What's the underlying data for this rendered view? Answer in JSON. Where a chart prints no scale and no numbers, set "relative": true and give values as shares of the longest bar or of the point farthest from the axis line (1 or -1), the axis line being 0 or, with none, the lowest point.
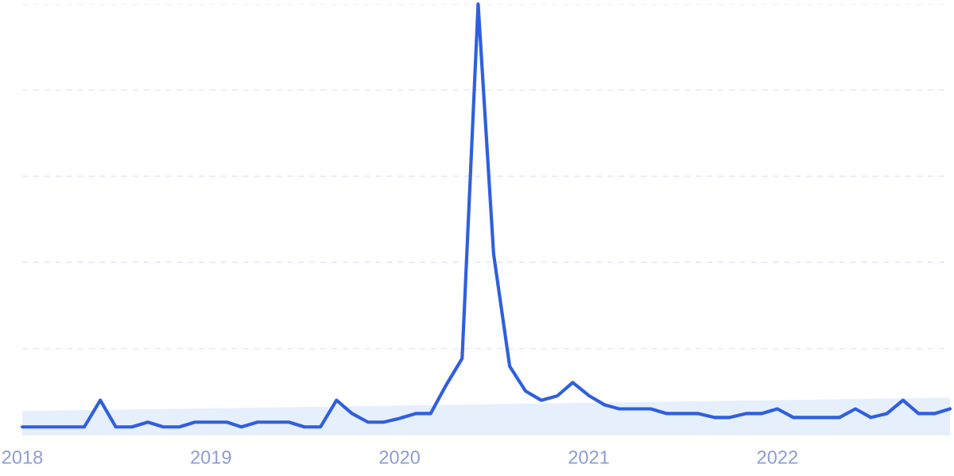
{
  "chart_data": {
    "type": "line",
    "relative": true,
    "grid": "y",
    "line_style": "solid",
    "marker": "none",
    "tick_labels": "x",
    "x": [
      "2018-01",
      "2018-02",
      "2018-03",
      "2018-04",
      "2018-05",
      "2018-06",
      "2018-07",
      "2018-08",
      "2018-09",
      "2018-10",
      "2018-11",
      "2018-12",
      "2019-01",
      "2019-02",
      "2019-03",
      "2019-04",
      "2019-05",
      "2019-06",
      "2019-07",
      "2019-08",
      "2019-09",
      "2019-10",
      "2019-11",
      "2019-12",
      "2020-01",
      "2020-02",
      "2020-03",
      "2020-04",
      "2020-05",
      "2020-06",
      "2020-07",
      "2020-08",
      "2020-09",
      "2020-10",
      "2020-11",
      "2020-12",
      "2021-01",
      "2021-02",
      "2021-03",
      "2021-04",
      "2021-05",
      "2021-06",
      "2021-07",
      "2021-08",
      "2021-09",
      "2021-10",
      "2021-11",
      "2021-12",
      "2022-01",
      "2022-02",
      "2022-03",
      "2022-04",
      "2022-05",
      "2022-06",
      "2022-07",
      "2022-08",
      "2022-09",
      "2022-10",
      "2022-11",
      "2022-12"
    ],
    "xlim": [
      "2018-01",
      "2022-12"
    ],
    "xticks": [
      {
        "value": "2018-01",
        "label": "2018"
      },
      {
        "value": "2019-01",
        "label": "2019"
      },
      {
        "value": "2020-01",
        "label": "2020"
      },
      {
        "value": "2021-01",
        "label": "2021"
      },
      {
        "value": "2022-01",
        "label": "2022"
      }
    ],
    "series": [
      {
        "type": "area",
        "color": "#e6effc",
        "x": [
          "2018-01",
          "2022-12"
        ],
        "values": [
          0.055,
          0.086
        ]
      },
      {
        "color": "#2f5fe0",
        "values": [
          0.018,
          0.018,
          0.018,
          0.018,
          0.018,
          0.08,
          0.018,
          0.018,
          0.029,
          0.018,
          0.018,
          0.029,
          0.029,
          0.029,
          0.018,
          0.029,
          0.029,
          0.029,
          0.018,
          0.018,
          0.08,
          0.049,
          0.029,
          0.029,
          0.038,
          0.049,
          0.049,
          0.117,
          0.177,
          1,
          0.419,
          0.159,
          0.101,
          0.08,
          0.09,
          0.121,
          0.091,
          0.069,
          0.06,
          0.06,
          0.06,
          0.049,
          0.049,
          0.049,
          0.04,
          0.04,
          0.049,
          0.049,
          0.06,
          0.04,
          0.04,
          0.04,
          0.04,
          0.06,
          0.04,
          0.049,
          0.08,
          0.049,
          0.049,
          0.06
        ]
      }
    ]
  }
}
